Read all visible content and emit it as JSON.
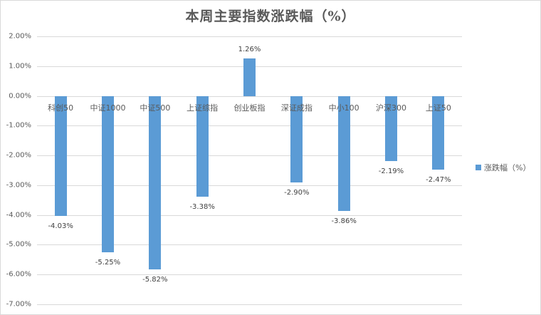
{
  "chart_data": {
    "type": "bar",
    "title": "本周主要指数涨跌幅（%）",
    "xlabel": "",
    "ylabel": "",
    "ylim": [
      -7.0,
      2.0
    ],
    "yticks": [
      "2.00%",
      "1.00%",
      "0.00%",
      "-1.00%",
      "-2.00%",
      "-3.00%",
      "-4.00%",
      "-5.00%",
      "-6.00%",
      "-7.00%"
    ],
    "grid": true,
    "legend_position": "right",
    "categories": [
      "科创50",
      "中证1000",
      "中证500",
      "上证综指",
      "创业板指",
      "深证成指",
      "中小100",
      "沪深300",
      "上证50"
    ],
    "series": [
      {
        "name": "涨跌幅（%）",
        "color": "#5b9bd5",
        "values": [
          -4.03,
          -5.25,
          -5.82,
          -3.38,
          1.26,
          -2.9,
          -3.86,
          -2.19,
          -2.47
        ],
        "labels": [
          "-4.03%",
          "-5.25%",
          "-5.82%",
          "-3.38%",
          "1.26%",
          "-2.90%",
          "-3.86%",
          "-2.19%",
          "-2.47%"
        ]
      }
    ]
  },
  "legend": {
    "label": "涨跌幅（%）",
    "color": "#5b9bd5"
  }
}
